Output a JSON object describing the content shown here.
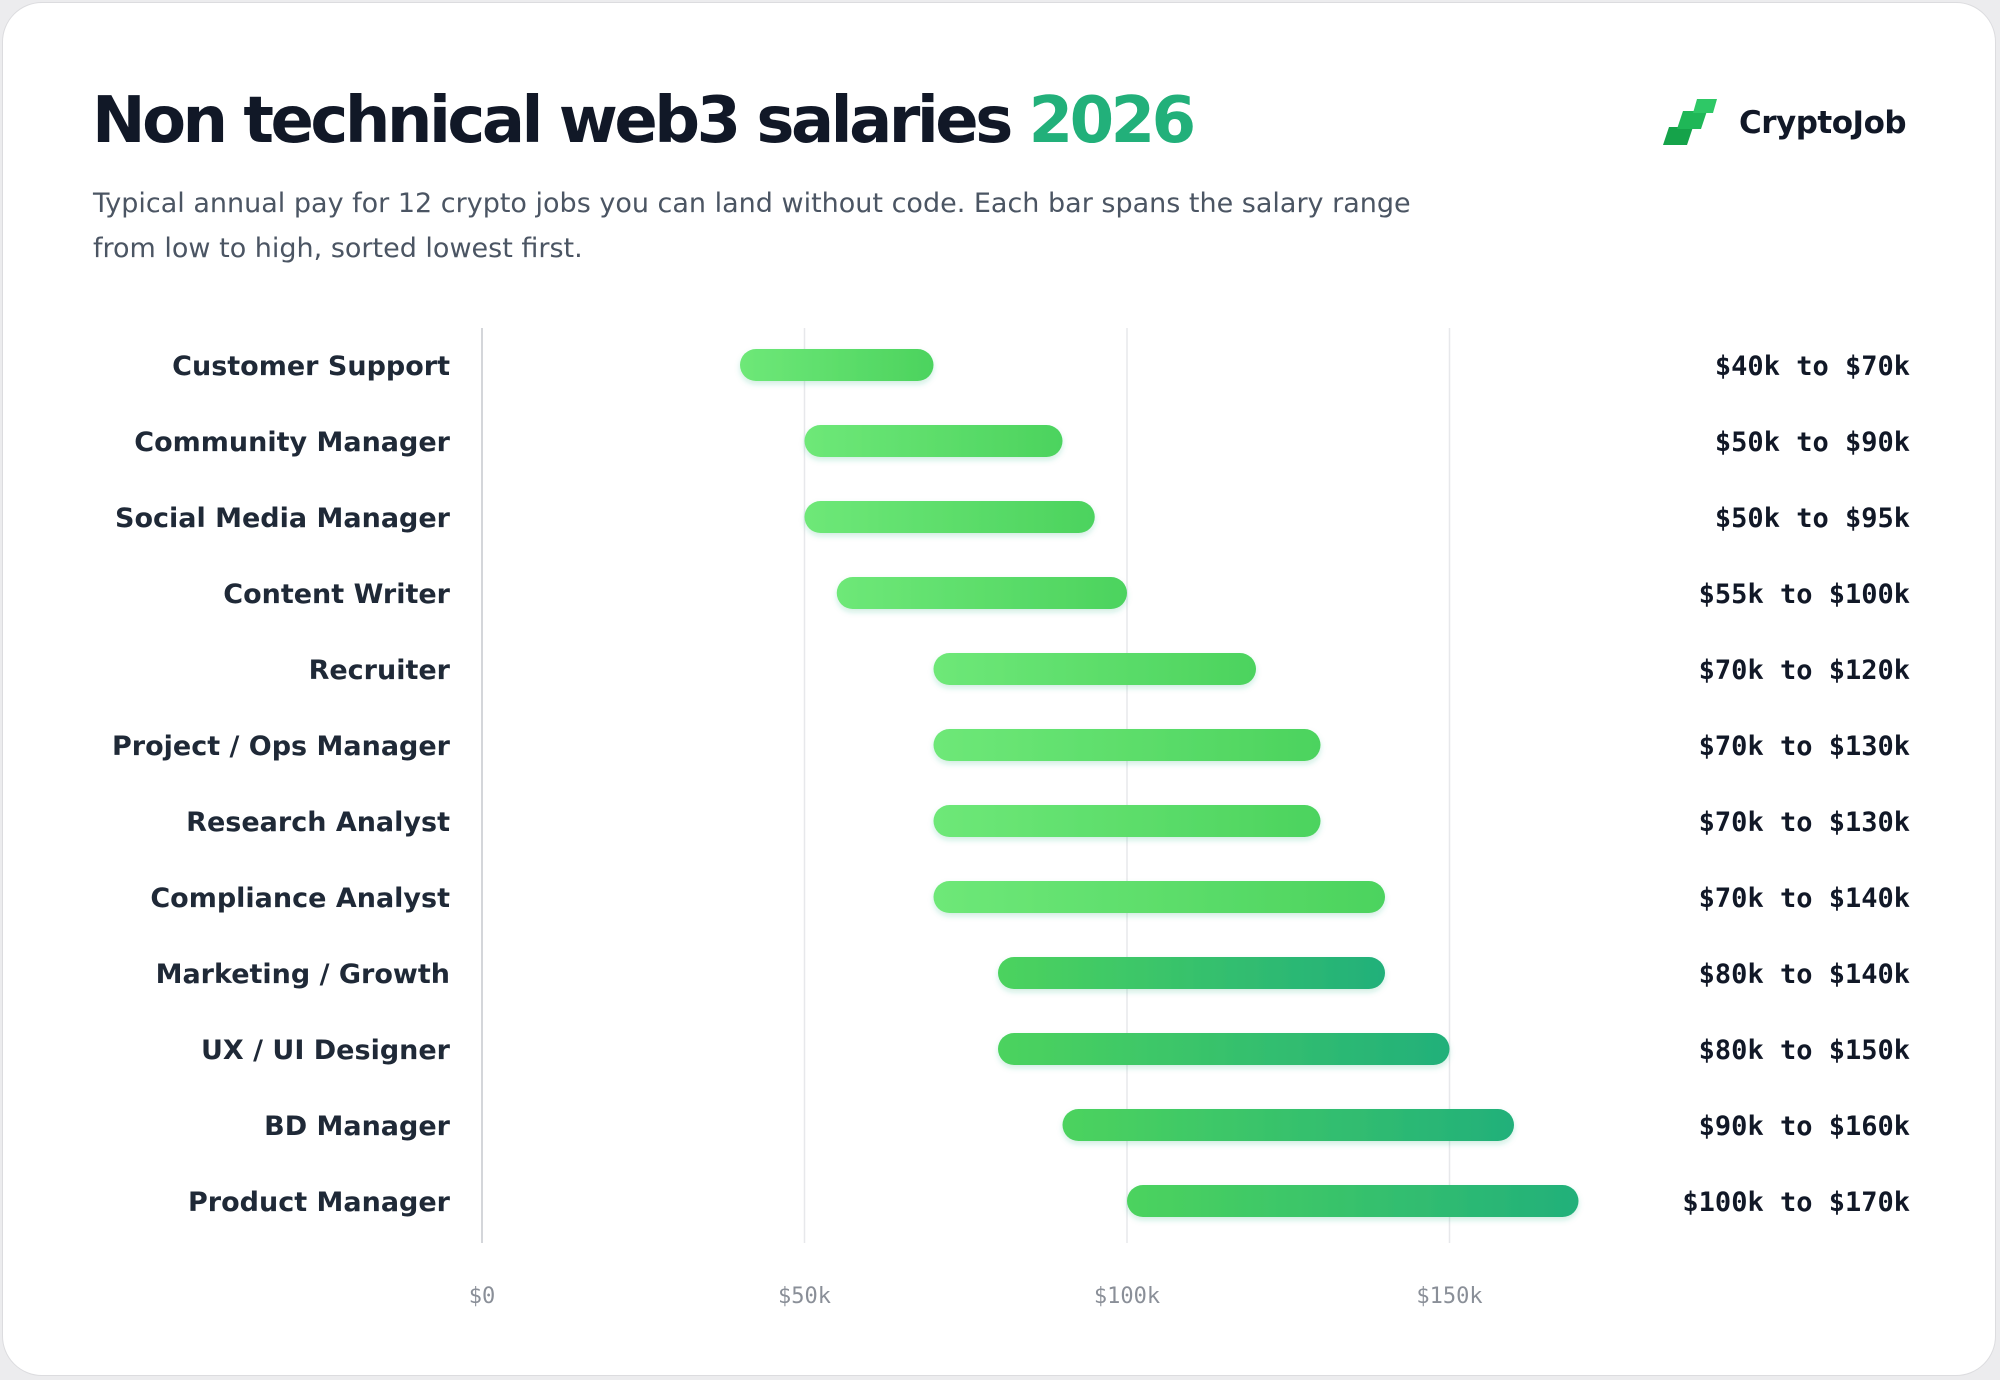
{
  "header": {
    "title": "Non technical web3 salaries",
    "title_year": "2026",
    "subtitle_line1": "Typical annual pay for 12 crypto jobs you can land without code. Each bar spans the salary range",
    "subtitle_line2": "from low to high, sorted lowest first."
  },
  "brand": {
    "name": "CryptoJob",
    "logo_icon": "stacked-green-bars-logo"
  },
  "colors": {
    "accent": "#22b07a",
    "bar_light": "#6ee878",
    "bar_mid": "#4cd35e",
    "bar_dark": "#22b07a",
    "title": "#111827",
    "gridline": "#e5e7eb"
  },
  "chart_data": {
    "type": "range-bar",
    "orientation": "horizontal",
    "title": "Non technical web3 salaries 2026",
    "xlim": [
      0,
      200000
    ],
    "ticks": [
      {
        "value": 0,
        "label": "$0"
      },
      {
        "value": 50000,
        "label": "$50k"
      },
      {
        "value": 100000,
        "label": "$100k"
      },
      {
        "value": 150000,
        "label": "$150k"
      }
    ],
    "grid": true,
    "categories": [
      "Customer Support",
      "Community Manager",
      "Social Media Manager",
      "Content Writer",
      "Recruiter",
      "Project / Ops Manager",
      "Research Analyst",
      "Compliance Analyst",
      "Marketing / Growth",
      "UX / UI Designer",
      "BD Manager",
      "Product Manager"
    ],
    "low": [
      40000,
      50000,
      50000,
      55000,
      70000,
      70000,
      70000,
      70000,
      80000,
      80000,
      90000,
      100000
    ],
    "high": [
      70000,
      90000,
      95000,
      100000,
      120000,
      130000,
      130000,
      140000,
      140000,
      150000,
      160000,
      170000
    ],
    "value_labels": [
      "$40k to $70k",
      "$50k to $90k",
      "$50k to $95k",
      "$55k to $100k",
      "$70k to $120k",
      "$70k to $130k",
      "$70k to $130k",
      "$70k to $140k",
      "$80k to $140k",
      "$80k to $150k",
      "$90k to $160k",
      "$100k to $170k"
    ]
  }
}
